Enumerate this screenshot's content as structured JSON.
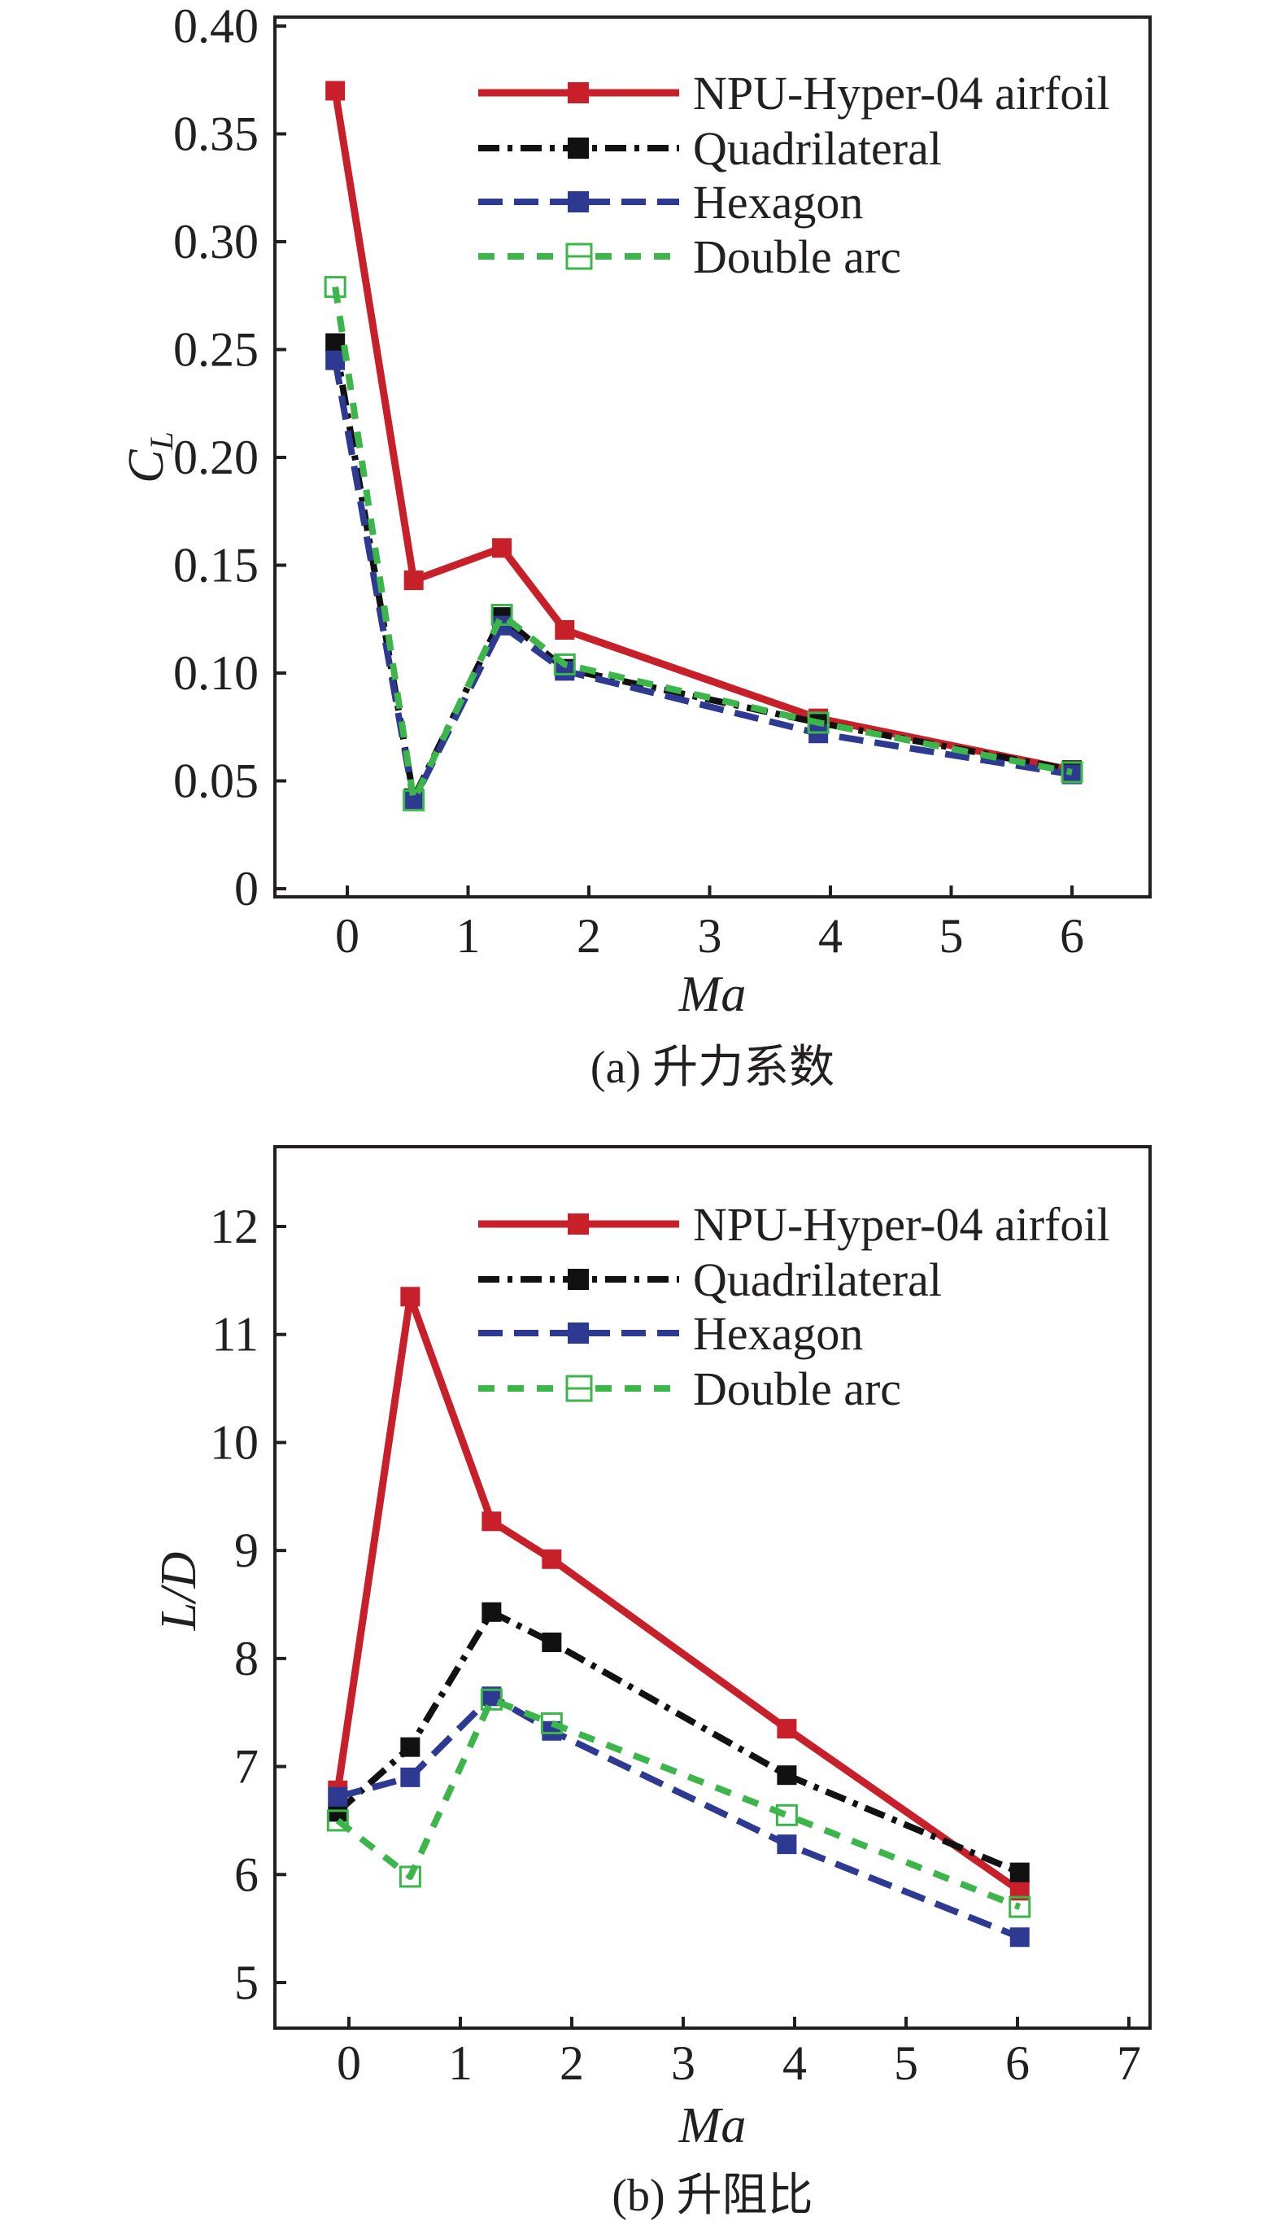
{
  "colors": {
    "NPU-Hyper-04 airfoil": "#c8202a",
    "Quadrilateral": "#111111",
    "Hexagon": "#2e3a92",
    "Double arc": "#3cb54a",
    "axis": "#231f20"
  },
  "chart_data": [
    {
      "type": "line",
      "caption": "(a) 升力系数",
      "xlabel": "Ma",
      "ylabel": "C",
      "ylabel_sub": "L",
      "xlim": [
        -0.6,
        6.65
      ],
      "ylim": [
        0,
        0.4
      ],
      "xticks": [
        0,
        1,
        2,
        3,
        4,
        5,
        6
      ],
      "xtick_labels": [
        "0",
        "1",
        "2",
        "3",
        "4",
        "5",
        "6"
      ],
      "yticks": [
        0,
        0.05,
        0.1,
        0.15,
        0.2,
        0.25,
        0.3,
        0.35,
        0.4
      ],
      "ytick_labels": [
        "0",
        "0.05",
        "0.10",
        "0.15",
        "0.20",
        "0.25",
        "0.30",
        "0.35",
        "0.40"
      ],
      "legend_position": "top-right",
      "grid": false,
      "x": [
        -0.1,
        0.55,
        1.28,
        1.8,
        3.9,
        6.0
      ],
      "series": [
        {
          "name": "NPU-Hyper-04 airfoil",
          "style": "solid",
          "marker": "filled-square",
          "values": [
            0.37,
            0.143,
            0.158,
            0.12,
            0.079,
            0.055
          ]
        },
        {
          "name": "Quadrilateral",
          "style": "dashdot",
          "marker": "filled-square",
          "values": [
            0.253,
            0.042,
            0.126,
            0.102,
            0.077,
            0.055
          ]
        },
        {
          "name": "Hexagon",
          "style": "dashed",
          "marker": "filled-square",
          "values": [
            0.245,
            0.041,
            0.122,
            0.101,
            0.072,
            0.053
          ]
        },
        {
          "name": "Double arc",
          "style": "short-dashed",
          "marker": "open-square",
          "values": [
            0.279,
            0.041,
            0.127,
            0.104,
            0.077,
            0.054
          ]
        }
      ]
    },
    {
      "type": "line",
      "caption": "(b) 升阻比",
      "xlabel": "Ma",
      "ylabel": "L/D",
      "xlim": [
        -0.65,
        7.3
      ],
      "ylim": [
        4.58,
        12.75
      ],
      "xticks": [
        0,
        1,
        2,
        3,
        4,
        5,
        6,
        7
      ],
      "xtick_labels": [
        "0",
        "1",
        "2",
        "3",
        "4",
        "5",
        "6",
        "7"
      ],
      "yticks": [
        5,
        6,
        7,
        8,
        9,
        10,
        11,
        12
      ],
      "ytick_labels": [
        "5",
        "6",
        "7",
        "8",
        "9",
        "10",
        "11",
        "12"
      ],
      "legend_position": "top-right",
      "grid": false,
      "x": [
        -0.1,
        0.55,
        1.28,
        1.82,
        3.93,
        6.02
      ],
      "series": [
        {
          "name": "NPU-Hyper-04 airfoil",
          "style": "solid",
          "marker": "filled-square",
          "values": [
            6.78,
            11.35,
            9.27,
            8.92,
            7.35,
            5.85
          ]
        },
        {
          "name": "Quadrilateral",
          "style": "dashdot",
          "marker": "filled-square",
          "values": [
            6.58,
            7.18,
            8.43,
            8.15,
            6.92,
            6.02
          ]
        },
        {
          "name": "Hexagon",
          "style": "dashed",
          "marker": "filled-square",
          "values": [
            6.72,
            6.9,
            7.65,
            7.33,
            6.28,
            5.42
          ]
        },
        {
          "name": "Double arc",
          "style": "short-dashed",
          "marker": "open-square",
          "values": [
            6.5,
            5.98,
            7.62,
            7.4,
            6.55,
            5.7
          ]
        }
      ]
    }
  ]
}
